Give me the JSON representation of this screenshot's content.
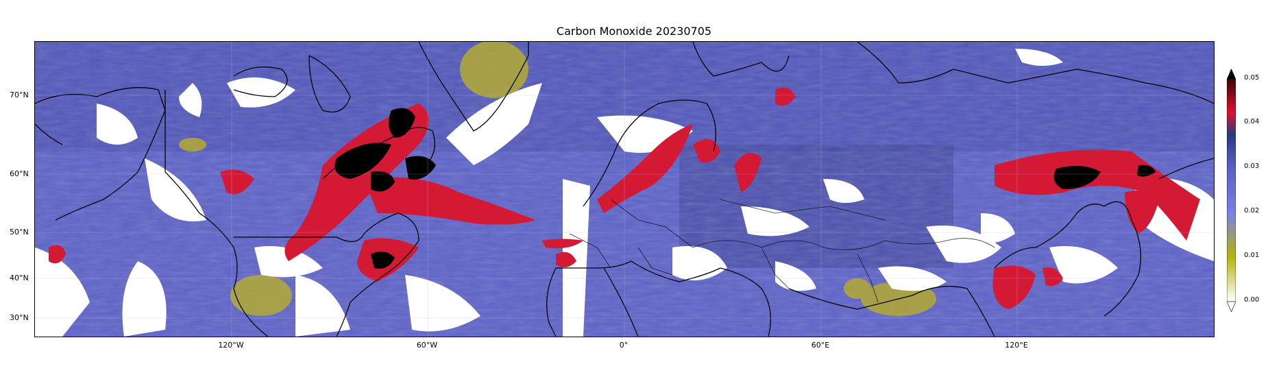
{
  "title": "Carbon Monoxide 20230705",
  "lat_labels": [
    "70°N",
    "60°N",
    "50°N",
    "40°N",
    "30°N"
  ],
  "lon_labels": [
    "120°W",
    "60°W",
    "0°",
    "60°E",
    "120°E"
  ],
  "colorbar": {
    "ticks": [
      "0.00",
      "0.01",
      "0.02",
      "0.03",
      "0.04",
      "0.05"
    ],
    "extend": "both",
    "colors": [
      "#ffffff",
      "#b5b20c",
      "#7a7fe6",
      "#3d4591",
      "#e0102f",
      "#000000"
    ]
  },
  "colors": {
    "background_co": "#5e63c9",
    "high_co": "#d41935",
    "extreme_co": "#000000",
    "low_co": "#b3aa33",
    "cloud_gap": "#ffffff"
  }
}
